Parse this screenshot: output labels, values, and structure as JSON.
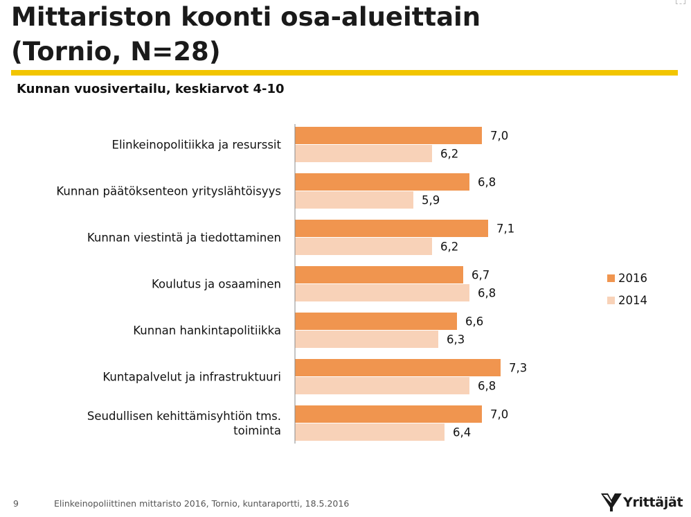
{
  "slide": {
    "title_line1": "Mittariston koonti osa-alueittain",
    "title_line2": "(Tornio, N=28)",
    "subtitle": "Kunnan vuosivertailu, keskiarvot 4-10",
    "accent_color": "#F2C500"
  },
  "chart_data": {
    "type": "bar",
    "orientation": "horizontal",
    "title": "Kunnan vuosivertailu, keskiarvot 4-10",
    "categories": [
      "Elinkeinopolitiikka ja resurssit",
      "Kunnan päätöksenteon yrityslähtöisyys",
      "Kunnan viestintä ja tiedottaminen",
      "Koulutus ja osaaminen",
      "Kunnan hankintapolitiikka",
      "Kuntapalvelut ja infrastruktuuri",
      "Seudullisen kehittämisyhtiön tms. toiminta"
    ],
    "category_lines": [
      [
        "Elinkeinopolitiikka ja resurssit"
      ],
      [
        "Kunnan päätöksenteon yrityslähtöisyys"
      ],
      [
        "Kunnan viestintä ja tiedottaminen"
      ],
      [
        "Koulutus ja osaaminen"
      ],
      [
        "Kunnan hankintapolitiikka"
      ],
      [
        "Kuntapalvelut ja infrastruktuuri"
      ],
      [
        "Seudullisen kehittämisyhtiön tms.",
        "toiminta"
      ]
    ],
    "series": [
      {
        "name": "2016",
        "color": "#F0954F",
        "values": [
          7.0,
          6.8,
          7.1,
          6.7,
          6.6,
          7.3,
          7.0
        ],
        "labels": [
          "7,0",
          "6,8",
          "7,1",
          "6,7",
          "6,6",
          "7,3",
          "7,0"
        ]
      },
      {
        "name": "2014",
        "color": "#F8D2B8",
        "values": [
          6.2,
          5.9,
          6.2,
          6.8,
          6.3,
          6.8,
          6.4
        ],
        "labels": [
          "6,2",
          "5,9",
          "6,2",
          "6,8",
          "6,3",
          "6,8",
          "6,4"
        ]
      }
    ],
    "xlim": [
      4,
      10
    ],
    "legend_position": "right",
    "xlabel": "",
    "ylabel": ""
  },
  "footer": {
    "page_number": "9",
    "text": "Elinkeinopoliittinen mittaristo 2016, Tornio, kuntaraportti, 18.5.2016",
    "logo_text": "Yrittäjät",
    "logo_color": "#1a1a1a"
  }
}
